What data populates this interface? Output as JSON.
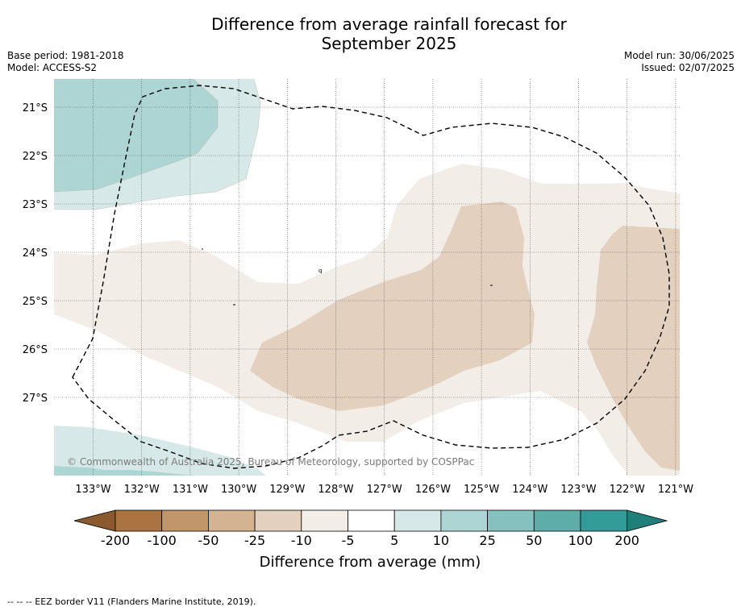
{
  "title_line1": "Difference from average rainfall forecast for",
  "title_line2": "September 2025",
  "base_period": "Base period: 1981-2018",
  "model": "Model: ACCESS-S2",
  "model_run": "Model run: 30/06/2025",
  "issued": "Issued: 02/07/2025",
  "copyright": "© Commonwealth of Australia 2025, Bureau of Meteorology, supported by COSPPac",
  "lat_labels": [
    "21°S",
    "22°S",
    "23°S",
    "24°S",
    "25°S",
    "26°S",
    "27°S"
  ],
  "lon_labels": [
    "133°W",
    "132°W",
    "131°W",
    "130°W",
    "129°W",
    "128°W",
    "127°W",
    "126°W",
    "125°W",
    "124°W",
    "123°W",
    "122°W",
    "121°W"
  ],
  "colorbar": {
    "ticks": [
      "-200",
      "-100",
      "-50",
      "-25",
      "-10",
      "-5",
      "5",
      "10",
      "25",
      "50",
      "100",
      "200"
    ],
    "label": "Difference from average (mm)",
    "colors": [
      "#a97441",
      "#c1966a",
      "#d4b393",
      "#e3d0be",
      "#f3ede8",
      "#ffffff",
      "#d6e9e8",
      "#acd5d4",
      "#86c1c0",
      "#5fadab",
      "#349c98"
    ],
    "low_extend": "#8a5a2e",
    "high_extend": "#207f7b"
  },
  "footer": "--  --  -- EEZ border V11 (Flanders Marine Institute, 2019)."
}
